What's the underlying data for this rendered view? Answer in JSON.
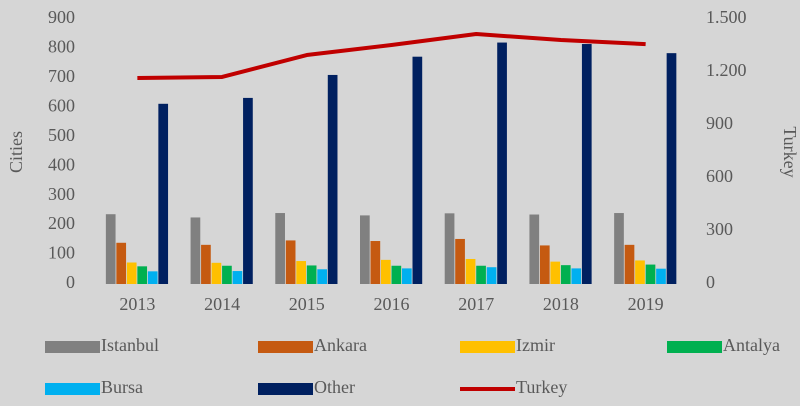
{
  "chart_data": {
    "type": "bar",
    "categories": [
      "2013",
      "2014",
      "2015",
      "2016",
      "2017",
      "2018",
      "2019"
    ],
    "y_label": "Cities",
    "y2_label": "Turkey",
    "ylim": [
      0,
      900
    ],
    "yticks": [
      0,
      100,
      200,
      300,
      400,
      500,
      600,
      700,
      800,
      900
    ],
    "y2lim": [
      0,
      1500
    ],
    "y2ticks": [
      0,
      300,
      600,
      900,
      {
        "value": 1200,
        "label": "1.200"
      },
      {
        "value": 1500,
        "label": "1.500"
      }
    ],
    "grid": false,
    "legend": "bottom",
    "series": [
      {
        "name": "Istanbul",
        "color": "#808080",
        "values": [
          237,
          226,
          241,
          233,
          240,
          236,
          241
        ]
      },
      {
        "name": "Ankara",
        "color": "#c55a11",
        "values": [
          140,
          133,
          148,
          146,
          153,
          131,
          133
        ]
      },
      {
        "name": "Izmir",
        "color": "#ffc000",
        "values": [
          73,
          72,
          78,
          82,
          85,
          76,
          80
        ]
      },
      {
        "name": "Antalya",
        "color": "#00b050",
        "values": [
          60,
          62,
          63,
          62,
          62,
          64,
          66
        ]
      },
      {
        "name": "Bursa",
        "color": "#00b0f0",
        "values": [
          43,
          44,
          50,
          53,
          57,
          53,
          52
        ]
      },
      {
        "name": "Other",
        "color": "#002060",
        "values": [
          612,
          632,
          710,
          772,
          820,
          815,
          784
        ]
      },
      {
        "name": "Turkey",
        "color": "#c00000",
        "type": "line",
        "axis": "y2",
        "values": [
          1166,
          1172,
          1296,
          1353,
          1415,
          1381,
          1358
        ]
      }
    ]
  }
}
